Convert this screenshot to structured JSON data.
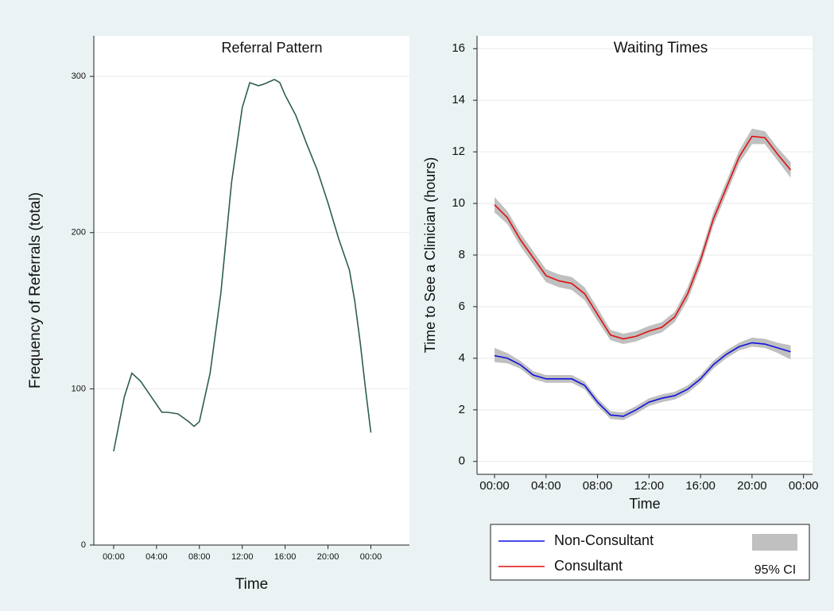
{
  "chart_data": [
    {
      "type": "line",
      "title": "Referral Pattern",
      "x_label": "Time",
      "y_label": "Frequency of Referrals (total)",
      "x": [
        0,
        1,
        1.7,
        2.5,
        3.5,
        4.5,
        5,
        6,
        7,
        7.5,
        8,
        9,
        10,
        11,
        12,
        12.7,
        13.5,
        14,
        15,
        15.5,
        16,
        17,
        18,
        19,
        20,
        21,
        22,
        22.5,
        23,
        23.5,
        24
      ],
      "series": [
        {
          "color": "#2e5e4e",
          "values": [
            60,
            95,
            110,
            105,
            95,
            85,
            85,
            84,
            79,
            76,
            79,
            110,
            161,
            232,
            280,
            296,
            294,
            295,
            298,
            296,
            288,
            275,
            257,
            240,
            219,
            196,
            176,
            156,
            130,
            100,
            72
          ]
        }
      ],
      "xlim": [
        -1.85,
        27.6
      ],
      "ylim": [
        0,
        326
      ],
      "xticks": [
        {
          "value": 0,
          "label": "00:00"
        },
        {
          "value": 4,
          "label": "04:00"
        },
        {
          "value": 8,
          "label": "08:00"
        },
        {
          "value": 12,
          "label": "12:00"
        },
        {
          "value": 16,
          "label": "16:00"
        },
        {
          "value": 20,
          "label": "20:00"
        },
        {
          "value": 24,
          "label": "00:00"
        }
      ],
      "yticks": [
        0,
        100,
        200,
        300
      ],
      "grid": true
    },
    {
      "type": "line",
      "title": "Waiting Times",
      "x_label": "Time",
      "y_label": "Time to See a Clinician (hours)",
      "x": [
        0,
        1,
        2,
        3,
        4,
        5,
        6,
        7,
        8,
        9,
        10,
        11,
        12,
        13,
        14,
        15,
        16,
        17,
        18,
        19,
        20,
        21,
        22,
        23
      ],
      "series": [
        {
          "name": "Non-Consultant",
          "color": "#1010e0",
          "values": [
            4.1,
            4.0,
            3.75,
            3.35,
            3.2,
            3.2,
            3.2,
            2.95,
            2.3,
            1.8,
            1.75,
            2.0,
            2.3,
            2.45,
            2.55,
            2.8,
            3.2,
            3.75,
            4.15,
            4.45,
            4.6,
            4.55,
            4.4,
            4.25
          ],
          "lower": [
            3.85,
            3.8,
            3.6,
            3.2,
            3.05,
            3.05,
            3.05,
            2.8,
            2.15,
            1.65,
            1.6,
            1.85,
            2.15,
            2.3,
            2.4,
            2.65,
            3.05,
            3.6,
            4.0,
            4.3,
            4.45,
            4.4,
            4.2,
            3.95
          ],
          "upper": [
            4.4,
            4.2,
            3.9,
            3.5,
            3.35,
            3.35,
            3.35,
            3.1,
            2.45,
            1.95,
            1.9,
            2.15,
            2.45,
            2.6,
            2.7,
            2.95,
            3.35,
            3.9,
            4.3,
            4.6,
            4.8,
            4.75,
            4.6,
            4.5
          ]
        },
        {
          "name": "Consultant",
          "color": "#e01010",
          "values": [
            9.95,
            9.45,
            8.6,
            7.9,
            7.2,
            7.0,
            6.9,
            6.5,
            5.7,
            4.9,
            4.75,
            4.85,
            5.05,
            5.2,
            5.6,
            6.5,
            7.8,
            9.4,
            10.6,
            11.8,
            12.6,
            12.55,
            11.9,
            11.3
          ],
          "lower": [
            9.65,
            9.2,
            8.35,
            7.65,
            6.95,
            6.75,
            6.65,
            6.25,
            5.45,
            4.7,
            4.55,
            4.65,
            4.85,
            5.0,
            5.4,
            6.25,
            7.55,
            9.15,
            10.35,
            11.55,
            12.3,
            12.3,
            11.65,
            11.0
          ],
          "upper": [
            10.25,
            9.7,
            8.85,
            8.15,
            7.45,
            7.25,
            7.15,
            6.75,
            5.95,
            5.1,
            4.95,
            5.05,
            5.25,
            5.4,
            5.8,
            6.75,
            8.05,
            9.65,
            10.85,
            12.05,
            12.9,
            12.8,
            12.15,
            11.6
          ]
        }
      ],
      "ci_label": "95% CI",
      "ci_color": "#c0c0c0",
      "xlim": [
        -1.36,
        24.7
      ],
      "ylim": [
        -0.5,
        16.5
      ],
      "xticks": [
        {
          "value": 0,
          "label": "00:00"
        },
        {
          "value": 4,
          "label": "04:00"
        },
        {
          "value": 8,
          "label": "08:00"
        },
        {
          "value": 12,
          "label": "12:00"
        },
        {
          "value": 16,
          "label": "16:00"
        },
        {
          "value": 20,
          "label": "20:00"
        },
        {
          "value": 24,
          "label": "00:00"
        }
      ],
      "yticks": [
        0,
        2,
        4,
        6,
        8,
        10,
        12,
        14,
        16
      ],
      "grid": true
    }
  ]
}
